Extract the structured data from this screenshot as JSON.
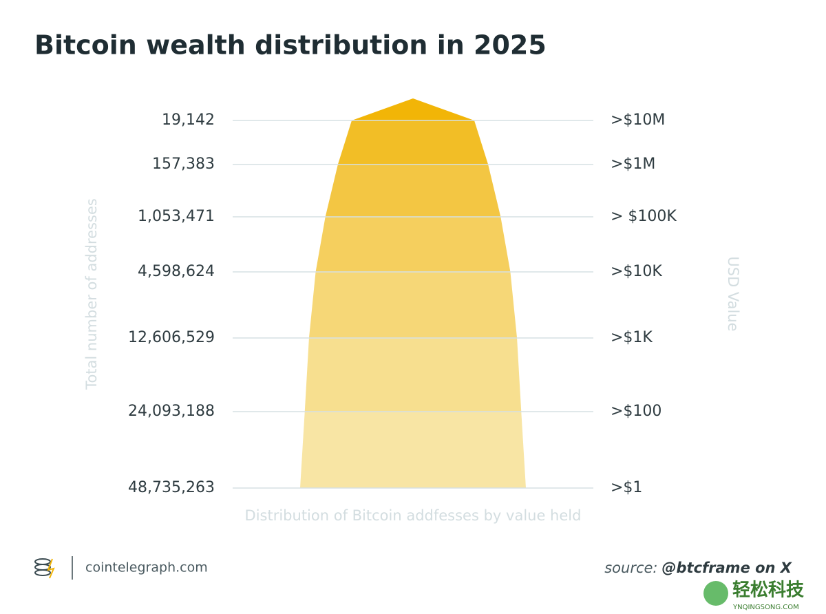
{
  "chart_data": {
    "type": "pyramid",
    "title": "Bitcoin wealth distribution in 2025",
    "y_label": "Total number of addresses",
    "y2_label": "USD Value",
    "x_label": "Distribution of Bitcoin addfesses by value held",
    "categories": [
      ">$10M",
      ">$1M",
      "> $100K",
      ">$10K",
      ">$1K",
      ">$100",
      ">$1"
    ],
    "values": [
      19142,
      157383,
      1053471,
      4598624,
      12606529,
      24093188,
      48735263
    ],
    "value_labels": [
      "19,142",
      "157,383",
      "1,053,471",
      "4,598,624",
      "12,606,529",
      "24,093,188",
      "48,735,263"
    ],
    "colors": [
      "#f2b507",
      "#f2be26",
      "#f3c643",
      "#f5cf5e",
      "#f6d777",
      "#f7df8f",
      "#f8e5a4"
    ],
    "log_scale": true,
    "grid": true
  },
  "footer": {
    "brand": "cointelegraph.com",
    "source_prefix": "source:",
    "source_handle": "@btcframe on X"
  },
  "watermark": {
    "name": "轻松科技",
    "url": "YNQINGSONG.COM"
  }
}
